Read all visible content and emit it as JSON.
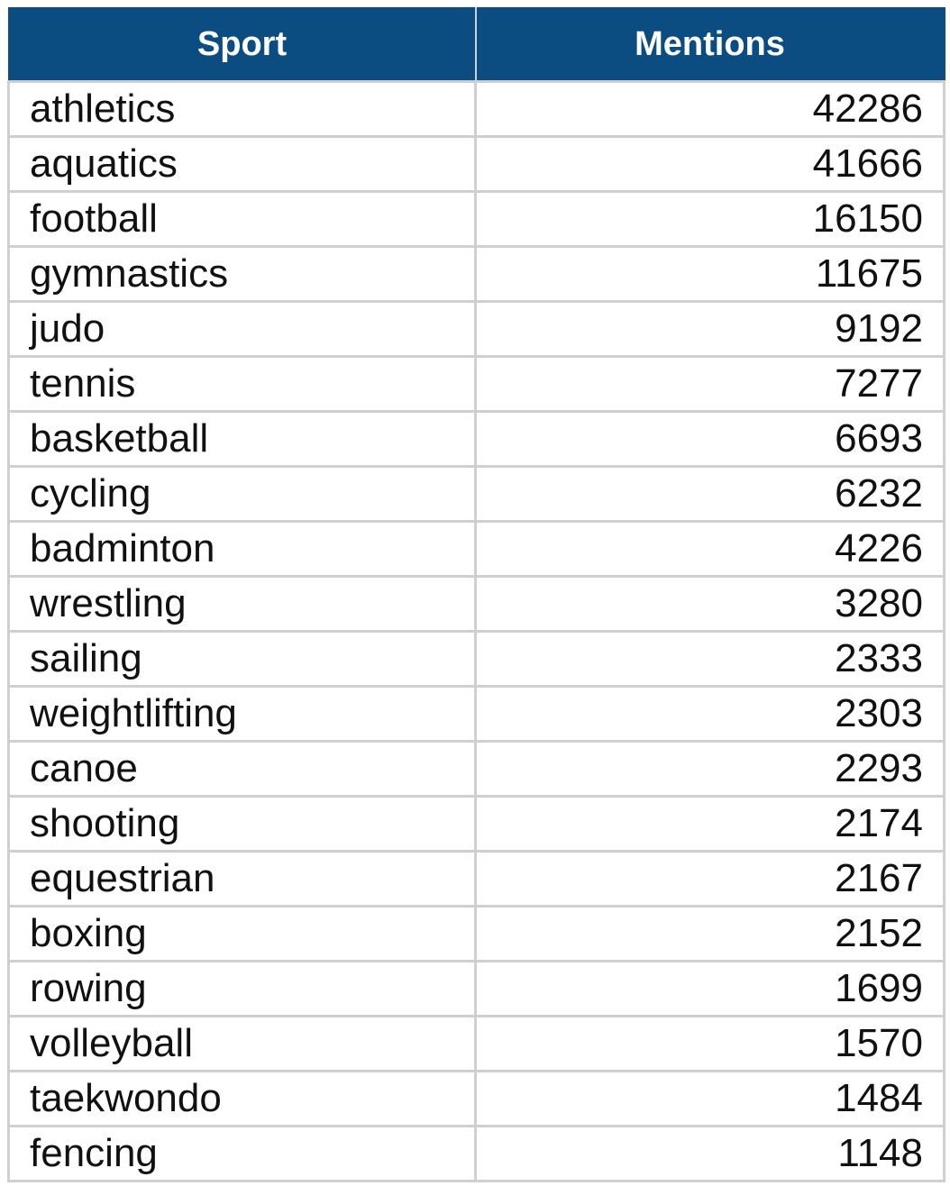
{
  "chart_data": {
    "type": "table",
    "columns": [
      "Sport",
      "Mentions"
    ],
    "rows": [
      {
        "sport": "athletics",
        "mentions": "42286"
      },
      {
        "sport": "aquatics",
        "mentions": "41666"
      },
      {
        "sport": "football",
        "mentions": "16150"
      },
      {
        "sport": "gymnastics",
        "mentions": "11675"
      },
      {
        "sport": "judo",
        "mentions": "9192"
      },
      {
        "sport": "tennis",
        "mentions": "7277"
      },
      {
        "sport": "basketball",
        "mentions": "6693"
      },
      {
        "sport": "cycling",
        "mentions": "6232"
      },
      {
        "sport": "badminton",
        "mentions": "4226"
      },
      {
        "sport": "wrestling",
        "mentions": "3280"
      },
      {
        "sport": "sailing",
        "mentions": "2333"
      },
      {
        "sport": "weightlifting",
        "mentions": "2303"
      },
      {
        "sport": "canoe",
        "mentions": "2293"
      },
      {
        "sport": "shooting",
        "mentions": "2174"
      },
      {
        "sport": "equestrian",
        "mentions": "2167"
      },
      {
        "sport": "boxing",
        "mentions": "2152"
      },
      {
        "sport": "rowing",
        "mentions": "1699"
      },
      {
        "sport": "volleyball",
        "mentions": "1570"
      },
      {
        "sport": "taekwondo",
        "mentions": "1484"
      },
      {
        "sport": "fencing",
        "mentions": "1148"
      }
    ]
  },
  "colors": {
    "header_background": "#0b4d80",
    "header_text": "#ffffff",
    "grid_lines": "#cfcfcf",
    "body_text": "#111111"
  }
}
